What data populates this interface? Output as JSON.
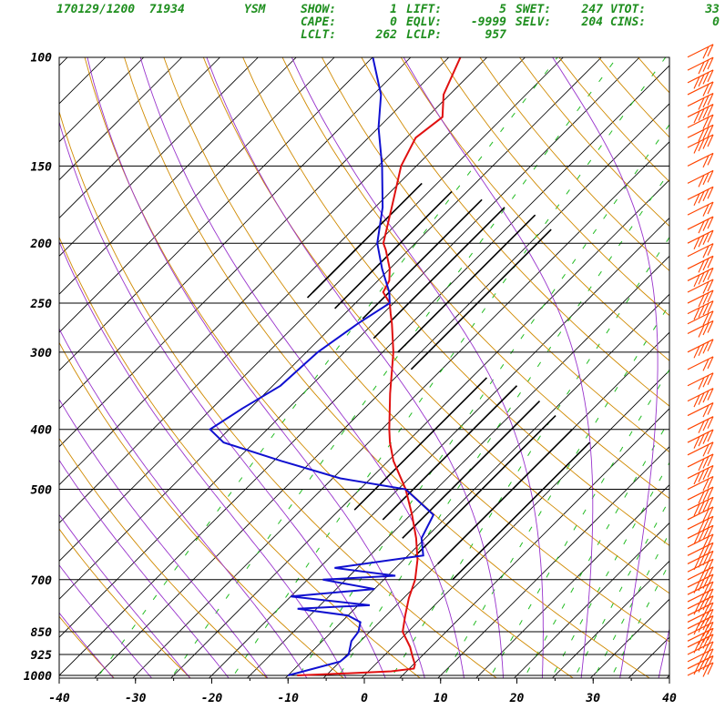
{
  "header": {
    "station_line": "170129/1200  71934",
    "station_id": "YSM",
    "indices": [
      {
        "label": "SHOW:",
        "value": "1"
      },
      {
        "label": "LIFT:",
        "value": "5"
      },
      {
        "label": "SWET:",
        "value": "247"
      },
      {
        "label": "VTOT:",
        "value": "33"
      },
      {
        "label": "CAPE:",
        "value": "0"
      },
      {
        "label": "EQLV:",
        "value": "-9999"
      },
      {
        "label": "SELV:",
        "value": "204"
      },
      {
        "label": "CINS:",
        "value": "0"
      },
      {
        "label": "LCLT:",
        "value": "262"
      },
      {
        "label": "LCLP:",
        "value": "957"
      }
    ]
  },
  "chart_data": {
    "type": "line",
    "diagram": "skew-T log-P",
    "pressure_ticks": [
      "100",
      "150",
      "200",
      "250",
      "300",
      "400",
      "500",
      "700",
      "850",
      "925",
      "1000"
    ],
    "temperature_ticks": [
      "-40",
      "-30",
      "-20",
      "-10",
      "0",
      "10",
      "20",
      "30",
      "40"
    ],
    "xlim": [
      -40,
      40
    ],
    "ylim_hPa": [
      1000,
      100
    ],
    "colors": {
      "temperature": "#e01010",
      "dewpoint": "#1010d0",
      "isotherm": "#000000",
      "dry_adiabat": "#d08a00",
      "moist_adiabat": "#9933cc",
      "mixing_ratio": "#22bb22",
      "wind_barb": "#ff4400"
    },
    "series": [
      {
        "name": "temperature",
        "points_hPa_degC": [
          [
            1000,
            -8.8
          ],
          [
            993,
            -3.0
          ],
          [
            985,
            3.0
          ],
          [
            975,
            5.6
          ],
          [
            960,
            5.2
          ],
          [
            925,
            3.5
          ],
          [
            900,
            2.3
          ],
          [
            850,
            -0.7
          ],
          [
            800,
            -2.5
          ],
          [
            750,
            -4.3
          ],
          [
            700,
            -5.9
          ],
          [
            650,
            -8.2
          ],
          [
            600,
            -11.2
          ],
          [
            550,
            -14.8
          ],
          [
            500,
            -19.0
          ],
          [
            450,
            -24.3
          ],
          [
            420,
            -27.2
          ],
          [
            400,
            -29.0
          ],
          [
            350,
            -33.6
          ],
          [
            300,
            -38.6
          ],
          [
            270,
            -42.5
          ],
          [
            260,
            -44.0
          ],
          [
            250,
            -45.5
          ],
          [
            240,
            -47.8
          ],
          [
            230,
            -48.5
          ],
          [
            220,
            -50.0
          ],
          [
            205,
            -53.0
          ],
          [
            200,
            -54.2
          ],
          [
            175,
            -57.8
          ],
          [
            150,
            -62.0
          ],
          [
            135,
            -63.8
          ],
          [
            125,
            -63.0
          ],
          [
            115,
            -65.8
          ],
          [
            100,
            -68.5
          ]
        ]
      },
      {
        "name": "dewpoint",
        "points_hPa_degC": [
          [
            1000,
            -10.0
          ],
          [
            990,
            -9.0
          ],
          [
            950,
            -5.0
          ],
          [
            925,
            -4.8
          ],
          [
            880,
            -6.2
          ],
          [
            850,
            -6.5
          ],
          [
            820,
            -7.5
          ],
          [
            800,
            -10.0
          ],
          [
            780,
            -17.5
          ],
          [
            770,
            -8.5
          ],
          [
            745,
            -20.0
          ],
          [
            725,
            -10.0
          ],
          [
            700,
            -18.0
          ],
          [
            690,
            -9.0
          ],
          [
            670,
            -18.0
          ],
          [
            640,
            -8.0
          ],
          [
            600,
            -10.5
          ],
          [
            550,
            -12.0
          ],
          [
            500,
            -19.0
          ],
          [
            480,
            -29.0
          ],
          [
            450,
            -39.0
          ],
          [
            420,
            -49.0
          ],
          [
            400,
            -52.5
          ],
          [
            370,
            -51.0
          ],
          [
            340,
            -49.0
          ],
          [
            300,
            -48.5
          ],
          [
            270,
            -47.0
          ],
          [
            250,
            -45.5
          ],
          [
            240,
            -47.0
          ],
          [
            220,
            -51.0
          ],
          [
            200,
            -55.0
          ],
          [
            175,
            -59.0
          ],
          [
            150,
            -64.5
          ],
          [
            130,
            -70.0
          ],
          [
            115,
            -74.0
          ],
          [
            100,
            -80.0
          ]
        ]
      }
    ],
    "wind_barbs_hPa": [
      100,
      105,
      110,
      115,
      120,
      125,
      130,
      135,
      140,
      150,
      160,
      170,
      180,
      190,
      200,
      210,
      220,
      230,
      240,
      250,
      260,
      270,
      280,
      300,
      320,
      340,
      360,
      380,
      400,
      420,
      440,
      460,
      480,
      500,
      520,
      540,
      560,
      580,
      600,
      620,
      640,
      660,
      680,
      700,
      720,
      740,
      760,
      780,
      800,
      820,
      840,
      860,
      880,
      900,
      925,
      950,
      975,
      1000
    ]
  }
}
